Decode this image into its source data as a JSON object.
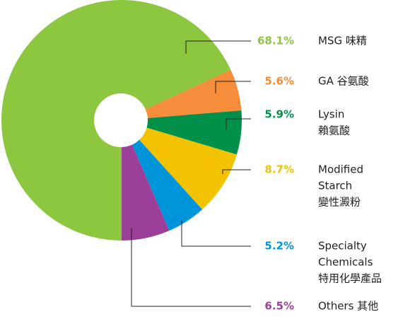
{
  "chart_data": {
    "type": "pie",
    "categories": [
      [
        "MSG 味精"
      ],
      [
        "GA 谷氨酸"
      ],
      [
        "Lysin",
        "賴氨酸"
      ],
      [
        "Modified",
        "Starch",
        "變性澱粉"
      ],
      [
        "Specialty",
        "Chemicals",
        "特用化學產品"
      ],
      [
        "Others 其他"
      ]
    ],
    "values": [
      68.1,
      5.6,
      5.9,
      8.7,
      5.2,
      6.5
    ],
    "value_labels": [
      "68.1%",
      "5.6%",
      "5.9%",
      "8.7%",
      "5.2%",
      "6.5%"
    ],
    "colors": [
      "#8dc63f",
      "#f58d3a",
      "#00904a",
      "#f3c300",
      "#0095da",
      "#9b3f98"
    ]
  }
}
